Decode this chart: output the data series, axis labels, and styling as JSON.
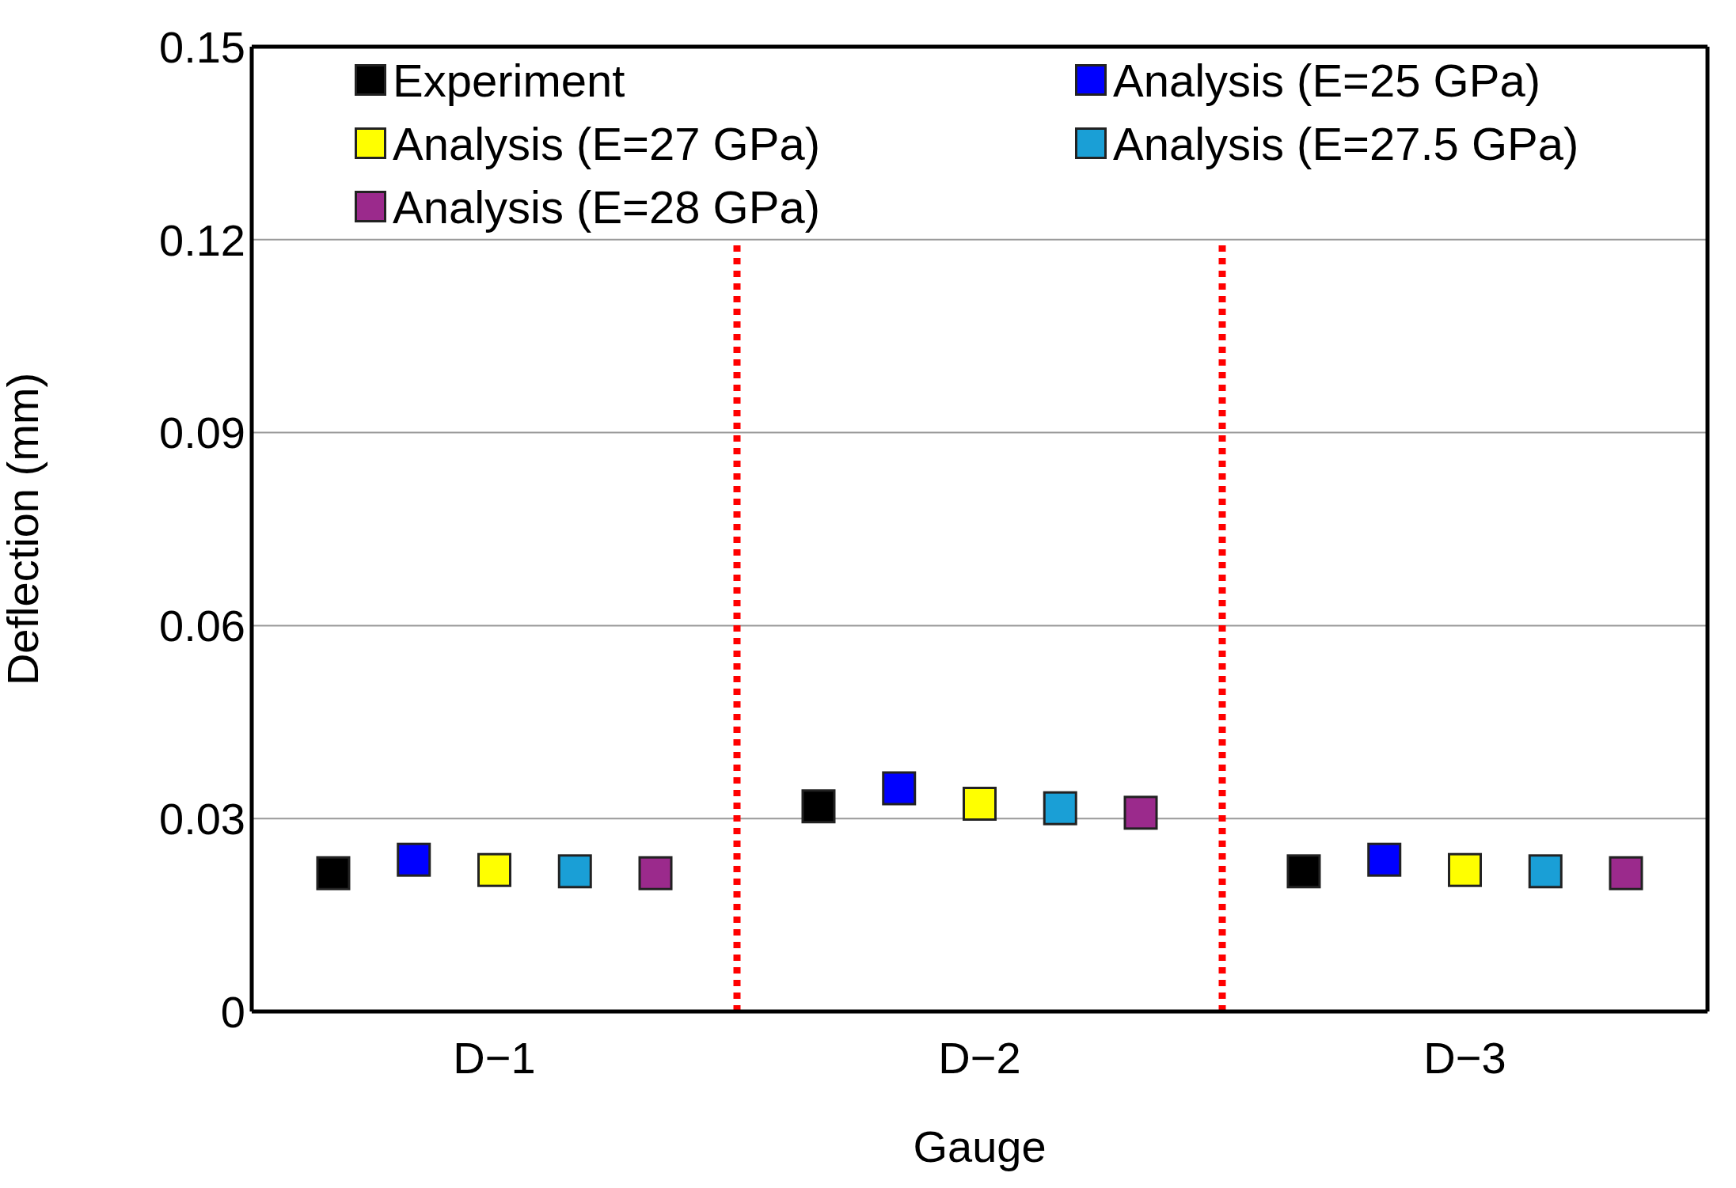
{
  "chart_data": {
    "type": "scatter",
    "xlabel": "Gauge",
    "ylabel": "Deflection (mm)",
    "categories": [
      "D−1",
      "D−2",
      "D−3"
    ],
    "series": [
      {
        "name": "Experiment",
        "color": "#000000",
        "values": [
          0.0215,
          0.0319,
          0.0218
        ]
      },
      {
        "name": "Analysis (E=25 GPa)",
        "color": "#0000ff",
        "values": [
          0.0236,
          0.0347,
          0.0236
        ]
      },
      {
        "name": "Analysis (E=27 GPa)",
        "color": "#ffff00",
        "values": [
          0.022,
          0.0323,
          0.022
        ]
      },
      {
        "name": "Analysis (E=27.5 GPa)",
        "color": "#1a9fd6",
        "values": [
          0.0218,
          0.0316,
          0.0218
        ]
      },
      {
        "name": "Analysis (E=28 GPa)",
        "color": "#9b2a8c",
        "values": [
          0.0215,
          0.0309,
          0.0215
        ]
      }
    ],
    "ylim": [
      0,
      0.15
    ],
    "yticks": [
      0,
      0.03,
      0.06,
      0.09,
      0.12,
      0.15
    ],
    "grid": "y",
    "marker": "square",
    "legend": "top left"
  }
}
